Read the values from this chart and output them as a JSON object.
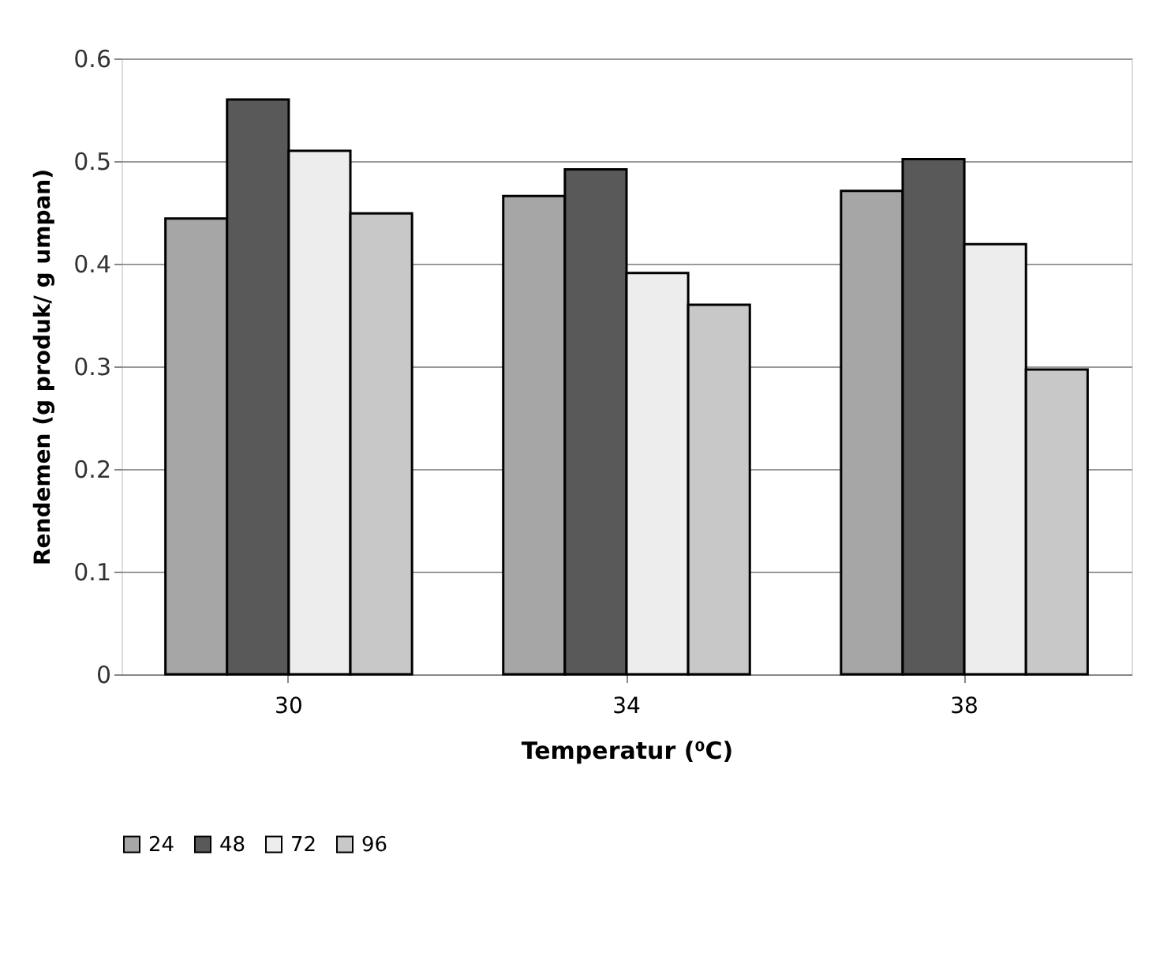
{
  "chart_data": {
    "type": "bar",
    "xlabel": "Temperatur (⁰C)",
    "ylabel": "Rendemen (g produk/ g umpan)",
    "categories": [
      "30",
      "34",
      "38"
    ],
    "series": [
      {
        "name": "24",
        "color": "#a6a6a6",
        "values": [
          0.444,
          0.466,
          0.471
        ]
      },
      {
        "name": "48",
        "color": "#595959",
        "values": [
          0.56,
          0.492,
          0.502
        ]
      },
      {
        "name": "72",
        "color": "#ededed",
        "values": [
          0.51,
          0.391,
          0.419
        ]
      },
      {
        "name": "96",
        "color": "#c8c8c8",
        "values": [
          0.449,
          0.36,
          0.297
        ]
      }
    ],
    "ylim": [
      0,
      0.6
    ],
    "yticks": [
      0,
      0.1,
      0.2,
      0.3,
      0.4,
      0.5,
      0.6
    ],
    "grid": "y",
    "legend": "bottom"
  }
}
